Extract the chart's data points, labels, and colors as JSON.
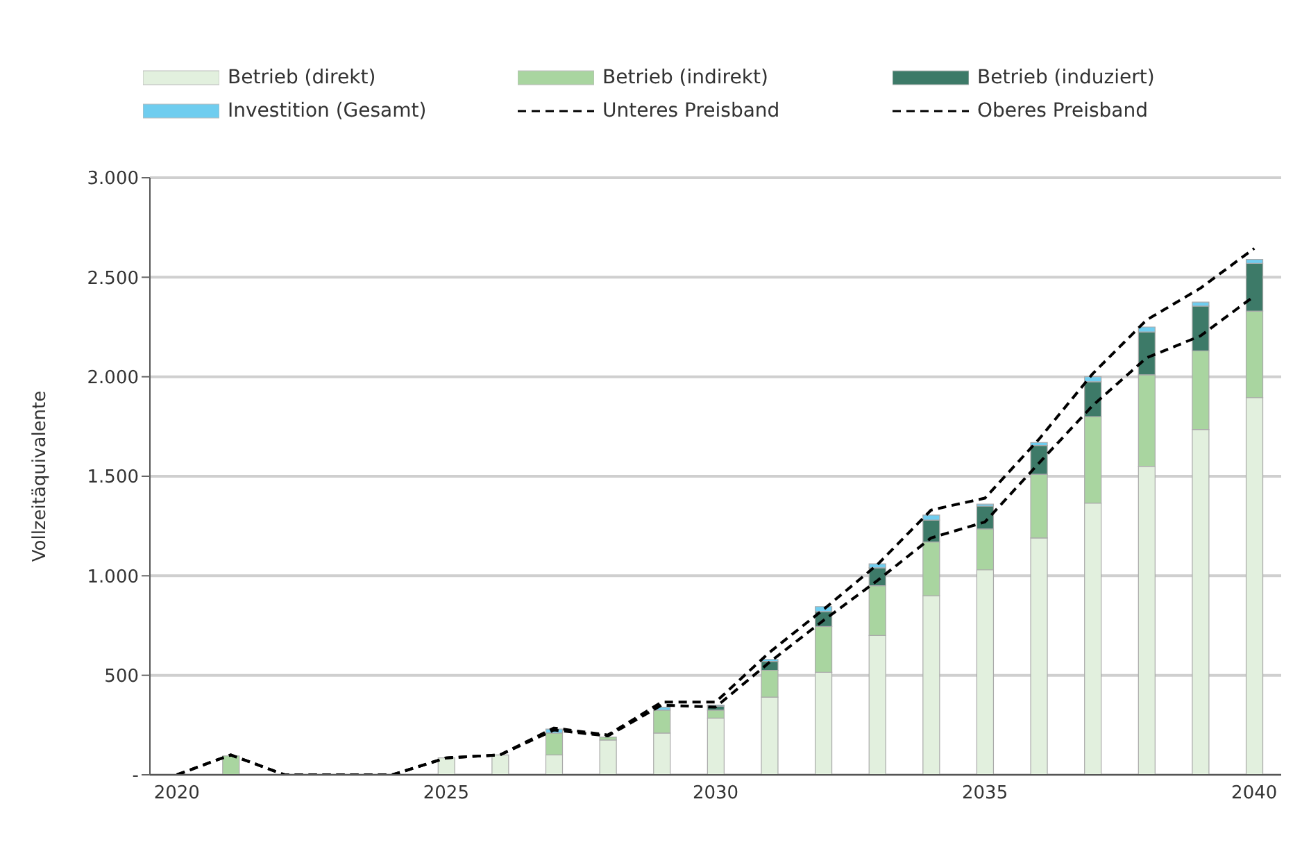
{
  "chart_data": {
    "type": "bar",
    "stacked": true,
    "ylabel": "Vollzeitäquivalente",
    "categories": [
      "2020",
      null,
      null,
      null,
      null,
      "2025",
      null,
      null,
      null,
      null,
      "2030",
      null,
      null,
      null,
      null,
      "2035",
      null,
      null,
      null,
      null,
      "2040"
    ],
    "series": [
      {
        "name": "Betrieb (direkt)",
        "color": "#e2f0de",
        "values": [
          0,
          0,
          0,
          0,
          0,
          85,
          100,
          100,
          175,
          210,
          285,
          390,
          515,
          700,
          900,
          1030,
          1190,
          1365,
          1550,
          1735,
          1895
        ]
      },
      {
        "name": "Betrieb (indirekt)",
        "color": "#a9d5a0",
        "values": [
          0,
          95,
          0,
          0,
          0,
          0,
          0,
          110,
          15,
          115,
          40,
          135,
          230,
          250,
          270,
          205,
          320,
          435,
          460,
          395,
          435
        ]
      },
      {
        "name": "Betrieb (induziert)",
        "color": "#3d7a68",
        "values": [
          0,
          0,
          0,
          0,
          0,
          0,
          0,
          null,
          0,
          null,
          20,
          45,
          75,
          90,
          110,
          115,
          145,
          175,
          215,
          225,
          240
        ]
      },
      {
        "name": "Investition (Gesamt)",
        "color": "#6fcdef",
        "values": [
          0,
          0,
          0,
          0,
          0,
          0,
          0,
          20,
          0,
          15,
          5,
          10,
          25,
          20,
          25,
          10,
          15,
          25,
          25,
          20,
          20
        ]
      },
      {
        "name": "Unteres Preisband",
        "type": "line",
        "color": "#000000",
        "line_style": "dashed",
        "values": [
          0,
          100,
          0,
          0,
          0,
          85,
          100,
          225,
          195,
          350,
          340,
          565,
          775,
          975,
          1190,
          1270,
          1565,
          1855,
          2095,
          2205,
          2405
        ]
      },
      {
        "name": "Oberes Preisband",
        "type": "line",
        "color": "#000000",
        "line_style": "dashed",
        "values": [
          0,
          100,
          0,
          0,
          0,
          85,
          100,
          235,
          200,
          365,
          365,
          615,
          830,
          1055,
          1330,
          1390,
          1685,
          2015,
          2285,
          2445,
          2645
        ]
      }
    ],
    "ylim": [
      0,
      3000
    ],
    "yticks": [
      {
        "value": 0,
        "label": "-"
      },
      {
        "value": 500,
        "label": "500"
      },
      {
        "value": 1000,
        "label": "1.000"
      },
      {
        "value": 1500,
        "label": "1.500"
      },
      {
        "value": 2000,
        "label": "2.000"
      },
      {
        "value": 2500,
        "label": "2.500"
      },
      {
        "value": 3000,
        "label": "3.000"
      }
    ],
    "grid": "y",
    "legend": "top",
    "marker": "none"
  }
}
